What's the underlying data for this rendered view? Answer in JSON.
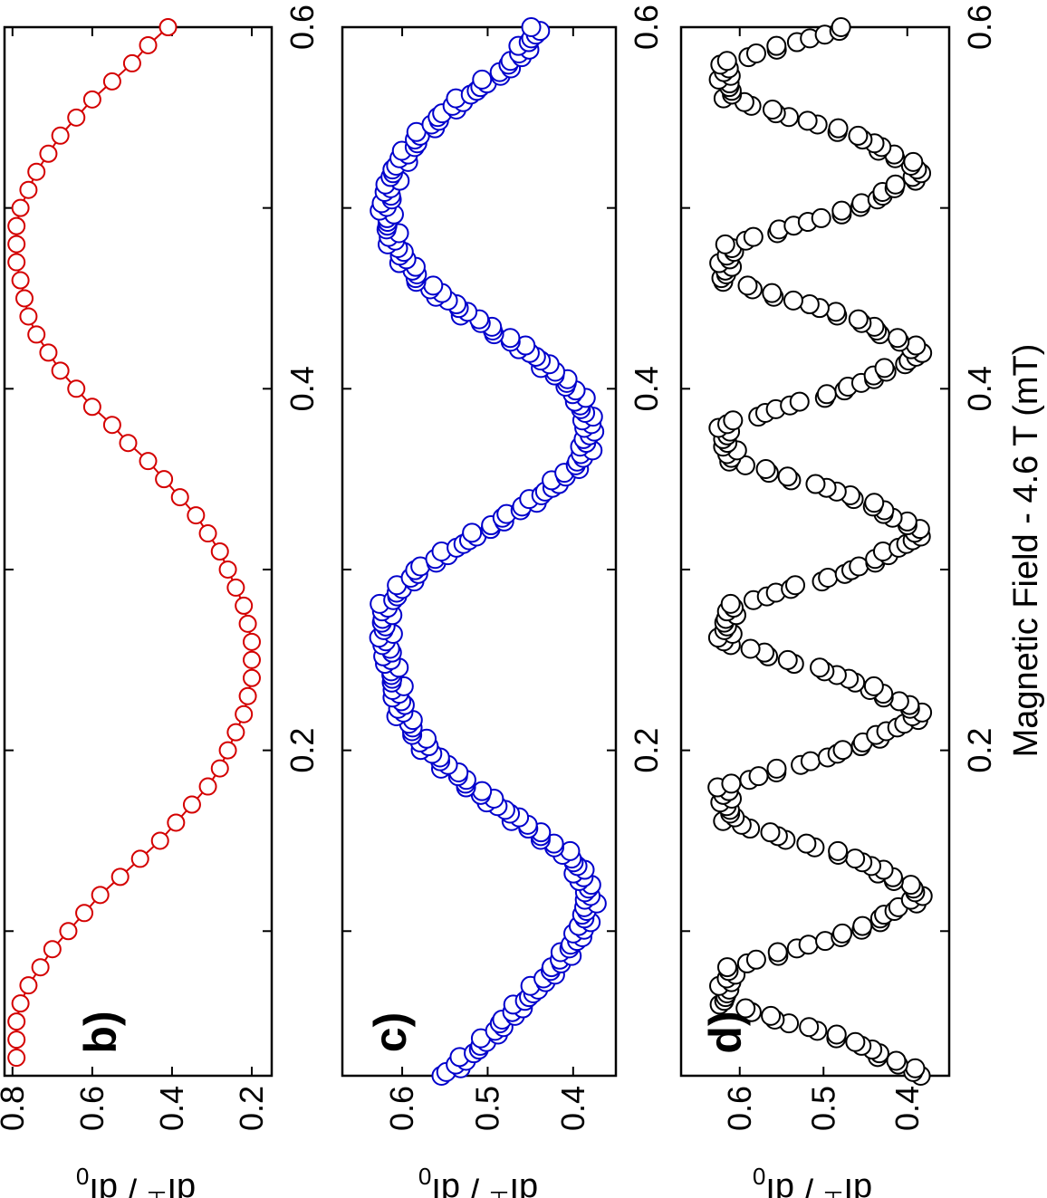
{
  "figure": {
    "xlabel": "Magnetic Field - 4.6 T (mT)",
    "ylabel_main": "dI",
    "ylabel_sup": "⊥",
    "ylabel_tail": " / dI",
    "ylabel_sub": "0"
  },
  "chart_data": [
    {
      "type": "line",
      "label": "b)",
      "xlabel": "Magnetic Field - 4.6 T (mT)",
      "ylabel": "dI⊥ / dI0",
      "xlim": [
        0.02,
        0.6
      ],
      "ylim": [
        0.15,
        0.82
      ],
      "xticks": [
        0.2,
        0.4,
        0.6
      ],
      "yticks": [
        0.2,
        0.4,
        0.6,
        0.8
      ],
      "color": "#d40000",
      "marker": "open-circle",
      "series": [
        {
          "x": [
            0.03,
            0.04,
            0.05,
            0.06,
            0.07,
            0.08,
            0.09,
            0.1,
            0.11,
            0.12,
            0.13,
            0.14,
            0.15,
            0.16,
            0.17,
            0.18,
            0.19,
            0.2,
            0.21,
            0.22,
            0.23,
            0.24,
            0.25,
            0.26,
            0.27,
            0.28,
            0.29,
            0.3,
            0.31,
            0.32,
            0.33,
            0.34,
            0.35,
            0.36,
            0.37,
            0.38,
            0.39,
            0.4,
            0.41,
            0.42,
            0.43,
            0.44,
            0.45,
            0.46,
            0.47,
            0.48,
            0.49,
            0.5,
            0.51,
            0.52,
            0.53,
            0.54,
            0.55,
            0.56,
            0.57,
            0.58,
            0.59,
            0.6
          ],
          "y": [
            0.79,
            0.79,
            0.79,
            0.78,
            0.76,
            0.73,
            0.7,
            0.66,
            0.62,
            0.58,
            0.53,
            0.48,
            0.43,
            0.39,
            0.35,
            0.31,
            0.28,
            0.26,
            0.24,
            0.22,
            0.21,
            0.2,
            0.2,
            0.2,
            0.21,
            0.22,
            0.24,
            0.26,
            0.28,
            0.31,
            0.34,
            0.38,
            0.42,
            0.46,
            0.51,
            0.55,
            0.6,
            0.64,
            0.68,
            0.71,
            0.74,
            0.76,
            0.77,
            0.78,
            0.79,
            0.79,
            0.79,
            0.78,
            0.76,
            0.74,
            0.71,
            0.68,
            0.64,
            0.6,
            0.55,
            0.5,
            0.46,
            0.41
          ]
        }
      ]
    },
    {
      "type": "scatter",
      "label": "c)",
      "xlabel": "Magnetic Field - 4.6 T (mT)",
      "ylabel": "dI⊥ / dI0",
      "xlim": [
        0.02,
        0.6
      ],
      "ylim": [
        0.35,
        0.67
      ],
      "xticks": [
        0.2,
        0.4,
        0.6
      ],
      "yticks": [
        0.4,
        0.5,
        0.6
      ],
      "color": "#0000cc",
      "marker": "open-circle",
      "period": 0.24,
      "phase_peak": 0.27,
      "series": [
        {
          "x": [
            0.02,
            0.04,
            0.06,
            0.08,
            0.1,
            0.12,
            0.14,
            0.16,
            0.18,
            0.2,
            0.22,
            0.24,
            0.26,
            0.28,
            0.3,
            0.32,
            0.34,
            0.36,
            0.38,
            0.4,
            0.42,
            0.44,
            0.46,
            0.48,
            0.5,
            0.52,
            0.54,
            0.56,
            0.58,
            0.6
          ],
          "y": [
            0.55,
            0.5,
            0.46,
            0.42,
            0.39,
            0.38,
            0.4,
            0.46,
            0.52,
            0.57,
            0.6,
            0.61,
            0.62,
            0.62,
            0.58,
            0.51,
            0.44,
            0.39,
            0.38,
            0.4,
            0.45,
            0.52,
            0.58,
            0.61,
            0.62,
            0.61,
            0.58,
            0.53,
            0.47,
            0.44
          ]
        }
      ]
    },
    {
      "type": "scatter",
      "label": "d)",
      "xlabel": "Magnetic Field - 4.6 T (mT)",
      "ylabel": "dI⊥ / dI0",
      "xlim": [
        0.02,
        0.6
      ],
      "ylim": [
        0.35,
        0.67
      ],
      "xticks": [
        0.2,
        0.4,
        0.6
      ],
      "yticks": [
        0.4,
        0.5,
        0.6
      ],
      "color": "#000000",
      "marker": "open-circle",
      "period": 0.1,
      "phase_peak": 0.08,
      "series": [
        {
          "x": [
            0.02,
            0.04,
            0.06,
            0.08,
            0.1,
            0.12,
            0.14,
            0.16,
            0.18,
            0.2,
            0.22,
            0.24,
            0.26,
            0.28,
            0.3,
            0.32,
            0.34,
            0.36,
            0.38,
            0.4,
            0.42,
            0.44,
            0.46,
            0.48,
            0.5,
            0.52,
            0.54,
            0.56,
            0.58,
            0.6
          ],
          "y": [
            0.38,
            0.47,
            0.62,
            0.61,
            0.46,
            0.38,
            0.46,
            0.61,
            0.62,
            0.47,
            0.38,
            0.47,
            0.62,
            0.61,
            0.46,
            0.38,
            0.46,
            0.61,
            0.62,
            0.47,
            0.38,
            0.47,
            0.62,
            0.61,
            0.46,
            0.38,
            0.46,
            0.61,
            0.62,
            0.47
          ]
        }
      ]
    }
  ]
}
